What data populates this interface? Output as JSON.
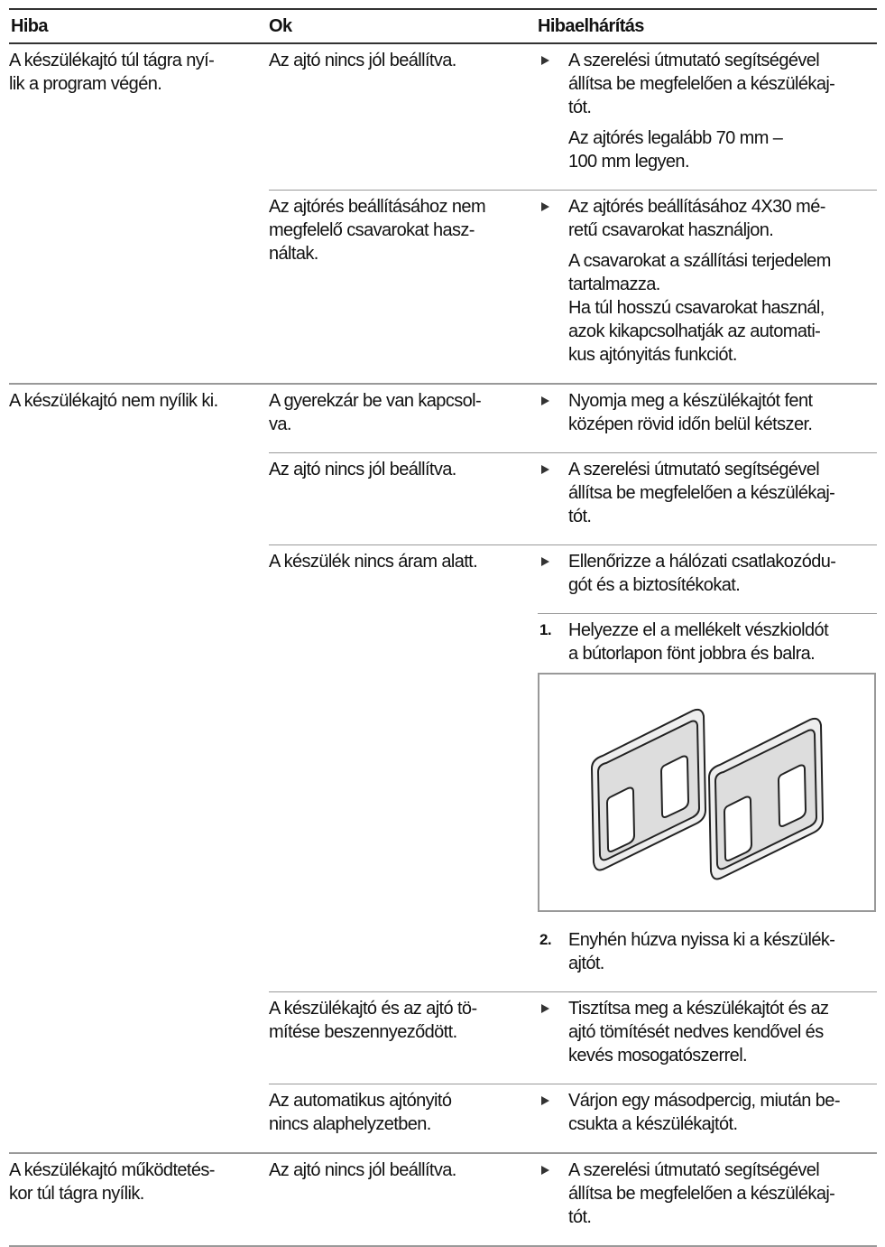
{
  "header": [
    "Hiba",
    "Ok",
    "Hibaelhárítás"
  ],
  "rows": [
    {
      "hiba": [
        "A készülékajtó túl tágra nyí-",
        "lik a program végén."
      ],
      "causes": [
        {
          "ok": [
            "Az ajtó nincs jól beállítva."
          ],
          "blocks": [
            [
              {
                "type": "bullet",
                "lines": [
                  "A szerelési útmutató segítségével",
                  "állítsa be megfelelően a készülékaj-",
                  "tót."
                ]
              },
              {
                "type": "text",
                "lines": [
                  "Az ajtórés legalább 70 mm –",
                  "100 mm legyen."
                ]
              }
            ]
          ]
        },
        {
          "ok": [
            "Az ajtórés beállításához nem",
            "megfelelő csavarokat hasz-",
            "náltak."
          ],
          "blocks": [
            [
              {
                "type": "bullet",
                "lines": [
                  "Az ajtórés beállításához 4X30 mé-",
                  "retű csavarokat használjon."
                ]
              },
              {
                "type": "text",
                "lines": [
                  "A csavarokat a szállítási terjedelem",
                  "tartalmazza.",
                  "Ha túl hosszú csavarokat használ,",
                  "azok kikapcsolhatják az automati-",
                  "kus ajtónyitás funkciót."
                ]
              }
            ]
          ]
        }
      ]
    },
    {
      "hiba": [
        "A készülékajtó nem nyílik ki."
      ],
      "causes": [
        {
          "ok": [
            "A gyerekzár be van kapcsol-",
            "va."
          ],
          "blocks": [
            [
              {
                "type": "bullet",
                "lines": [
                  "Nyomja meg a készülékajtót fent",
                  "középen rövid időn belül kétszer."
                ]
              }
            ]
          ]
        },
        {
          "ok": [
            "Az ajtó nincs jól beállítva."
          ],
          "blocks": [
            [
              {
                "type": "bullet",
                "lines": [
                  "A szerelési útmutató segítségével",
                  "állítsa be megfelelően a készülékaj-",
                  "tót."
                ]
              }
            ]
          ]
        },
        {
          "ok": [
            "A készülék nincs áram alatt."
          ],
          "blocks": [
            [
              {
                "type": "bullet",
                "lines": [
                  "Ellenőrizze a hálózati csatlakozódu-",
                  "gót és a biztosítékokat."
                ]
              }
            ],
            [
              {
                "type": "step",
                "number": "1.",
                "lines": [
                  "Helyezze el a mellékelt vészkioldót",
                  "a bútorlapon fönt jobbra és balra."
                ]
              },
              {
                "type": "image"
              },
              {
                "type": "step",
                "number": "2.",
                "lines": [
                  "Enyhén húzva nyissa ki a készülék-",
                  "ajtót."
                ]
              }
            ]
          ]
        },
        {
          "ok": [
            "A készülékajtó és az ajtó tö-",
            "mítése beszennyeződött."
          ],
          "blocks": [
            [
              {
                "type": "bullet",
                "lines": [
                  "Tisztítsa meg a készülékajtót és az",
                  "ajtó tömítését nedves kendővel és",
                  "kevés mosogatószerrel."
                ]
              }
            ]
          ]
        },
        {
          "ok": [
            "Az automatikus ajtónyitó",
            "nincs alaphelyzetben."
          ],
          "blocks": [
            [
              {
                "type": "bullet",
                "lines": [
                  "Várjon egy másodpercig, miután be-",
                  "csukta a készülékajtót."
                ]
              }
            ]
          ]
        }
      ]
    },
    {
      "hiba": [
        "A készülékajtó működtetés-",
        "kor túl tágra nyílik."
      ],
      "causes": [
        {
          "ok": [
            "Az ajtó nincs jól beállítva."
          ],
          "blocks": [
            [
              {
                "type": "bullet",
                "lines": [
                  "A szerelési útmutató segítségével",
                  "állítsa be megfelelően a készülékaj-",
                  "tót."
                ]
              }
            ]
          ]
        }
      ]
    }
  ]
}
